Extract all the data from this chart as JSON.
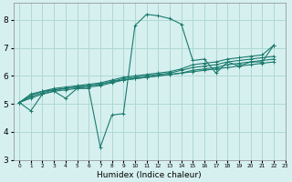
{
  "xlabel": "Humidex (Indice chaleur)",
  "ylabel": "",
  "bg_color": "#d6f0ef",
  "grid_color": "#afd8d4",
  "line_color": "#1a7a6e",
  "xlim": [
    -0.5,
    23
  ],
  "ylim": [
    3,
    8.6
  ],
  "xticks": [
    0,
    1,
    2,
    3,
    4,
    5,
    6,
    7,
    8,
    9,
    10,
    11,
    12,
    13,
    14,
    15,
    16,
    17,
    18,
    19,
    20,
    21,
    22,
    23
  ],
  "yticks": [
    3,
    4,
    5,
    6,
    7,
    8
  ],
  "lines": [
    [
      5.05,
      4.75,
      5.35,
      5.45,
      5.2,
      5.55,
      5.55,
      3.45,
      4.6,
      4.65,
      7.8,
      8.2,
      8.15,
      8.05,
      7.85,
      6.55,
      6.6,
      6.1,
      6.5,
      6.35,
      6.5,
      6.5,
      7.1
    ],
    [
      5.05,
      5.35,
      5.45,
      5.5,
      5.55,
      5.6,
      5.65,
      5.7,
      5.8,
      5.85,
      5.9,
      5.95,
      6.0,
      6.05,
      6.1,
      6.15,
      6.2,
      6.25,
      6.3,
      6.35,
      6.4,
      6.45,
      6.5
    ],
    [
      5.05,
      5.2,
      5.35,
      5.45,
      5.5,
      5.55,
      5.6,
      5.65,
      5.75,
      5.85,
      5.9,
      5.95,
      6.0,
      6.05,
      6.1,
      6.2,
      6.25,
      6.3,
      6.4,
      6.45,
      6.5,
      6.55,
      6.6
    ],
    [
      5.05,
      5.25,
      5.4,
      5.5,
      5.55,
      5.6,
      5.65,
      5.7,
      5.8,
      5.9,
      5.95,
      6.0,
      6.05,
      6.1,
      6.2,
      6.3,
      6.35,
      6.4,
      6.5,
      6.55,
      6.6,
      6.65,
      6.7
    ],
    [
      5.05,
      5.3,
      5.45,
      5.55,
      5.6,
      5.65,
      5.7,
      5.75,
      5.85,
      5.95,
      6.0,
      6.05,
      6.1,
      6.15,
      6.25,
      6.4,
      6.45,
      6.5,
      6.6,
      6.65,
      6.7,
      6.75,
      7.1
    ]
  ]
}
